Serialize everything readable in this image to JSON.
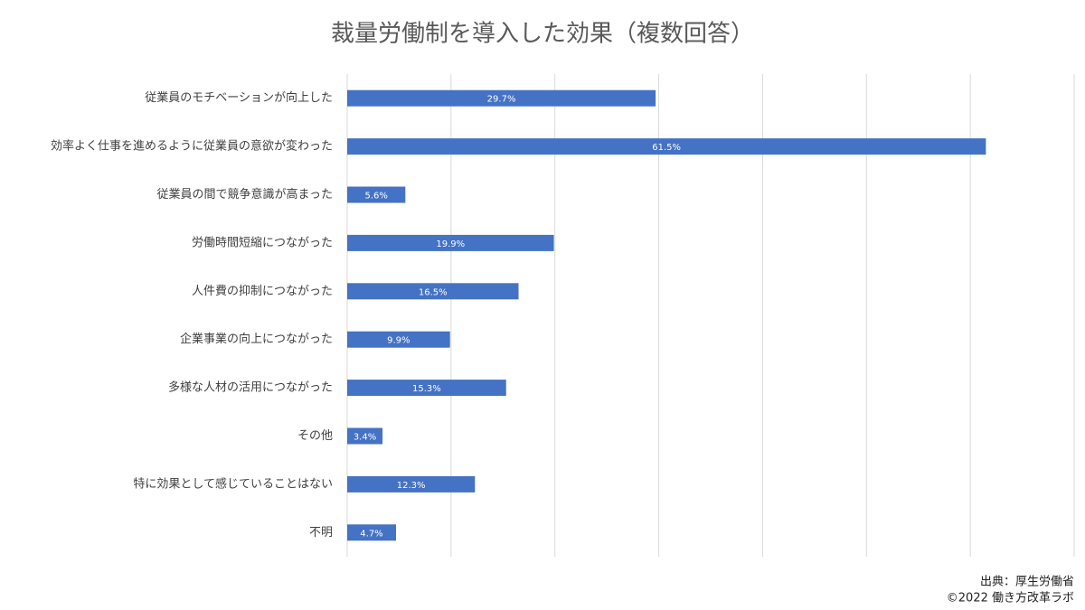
{
  "chart_data": {
    "type": "bar",
    "orientation": "horizontal",
    "title": "裁量労働制を導入した効果（複数回答）",
    "categories": [
      "従業員のモチベーションが向上した",
      "効率よく仕事を進めるように従業員の意欲が変わった",
      "従業員の間で競争意識が高まった",
      "労働時間短縮につながった",
      "人件費の抑制につながった",
      "企業事業の向上につながった",
      "多様な人材の活用につながった",
      "その他",
      "特に効果として感じていることはない",
      "不明"
    ],
    "values": [
      29.7,
      61.5,
      5.6,
      19.9,
      16.5,
      9.9,
      15.3,
      3.4,
      12.3,
      4.7
    ],
    "value_labels": [
      "29.7%",
      "61.5%",
      "5.6%",
      "19.9%",
      "16.5%",
      "9.9%",
      "15.3%",
      "3.4%",
      "12.3%",
      "4.7%"
    ],
    "color": "#4472c4",
    "xlim": [
      0,
      70
    ],
    "xticks": [
      0,
      10,
      20,
      30,
      40,
      50,
      60,
      70
    ],
    "grid": true,
    "source": "出典：厚生労働省",
    "credit": "©2022 働き方改革ラボ"
  }
}
